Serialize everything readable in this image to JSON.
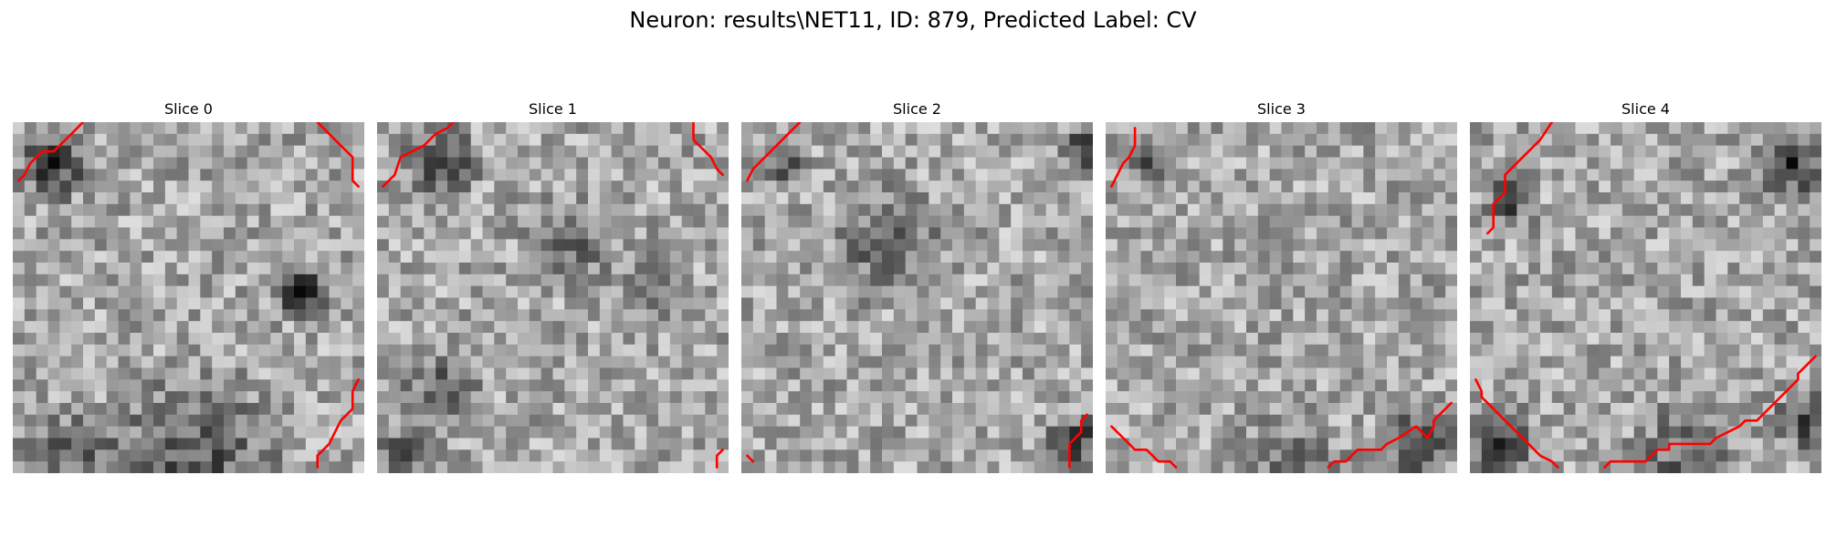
{
  "figure": {
    "title": "Neuron: results\\NET11, ID: 879, Predicted Label: CV"
  },
  "grid_size": 30,
  "colors": {
    "contour": "#ff0000"
  },
  "panels": [
    {
      "label": "Slice 0"
    },
    {
      "label": "Slice 1"
    },
    {
      "label": "Slice 2"
    },
    {
      "label": "Slice 3"
    },
    {
      "label": "Slice 4"
    }
  ]
}
